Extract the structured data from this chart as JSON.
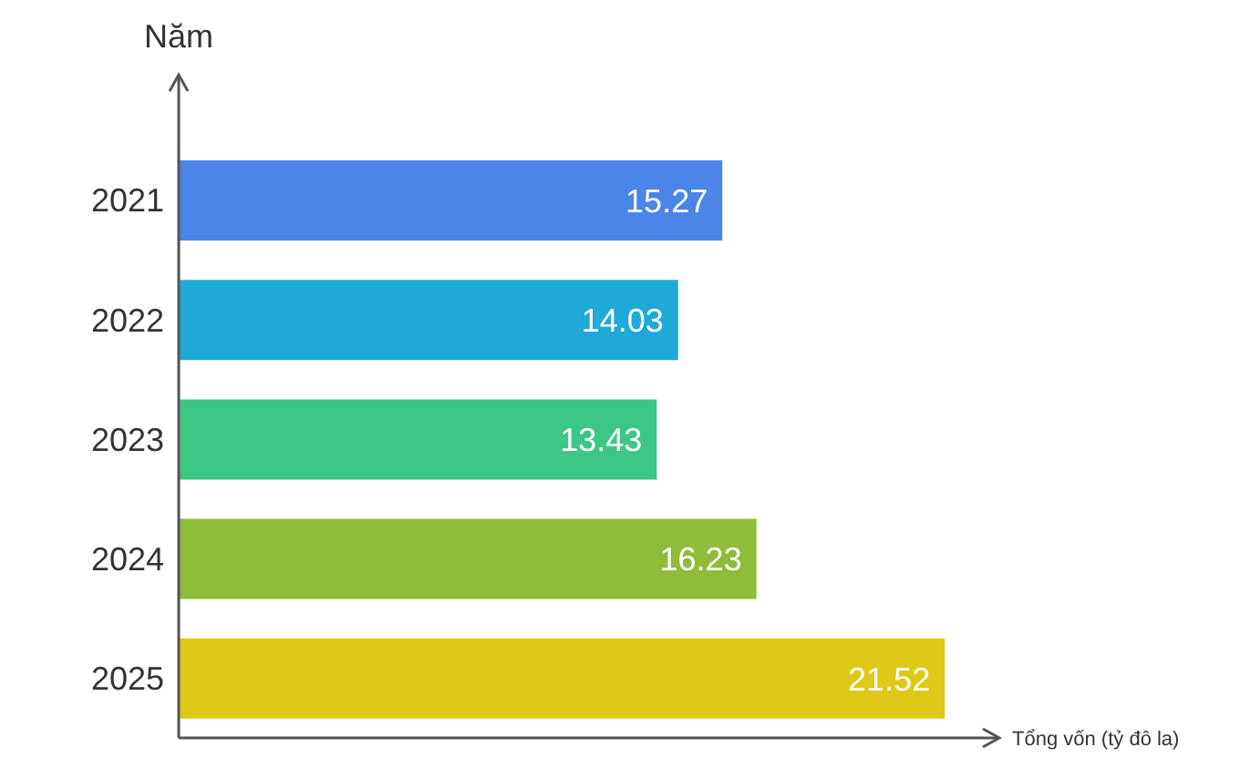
{
  "chart_data": {
    "type": "bar",
    "orientation": "horizontal",
    "ylabel": "Năm",
    "xlabel": "Tổng vốn (tỷ đô la)",
    "categories": [
      "2021",
      "2022",
      "2023",
      "2024",
      "2025"
    ],
    "values": [
      15.27,
      14.03,
      13.43,
      16.23,
      21.52
    ],
    "colors": [
      "#4a86e8",
      "#1fa9d9",
      "#3cc784",
      "#8fbc3b",
      "#dfc817"
    ],
    "xlim": [
      0,
      23
    ],
    "data_labels": true
  }
}
